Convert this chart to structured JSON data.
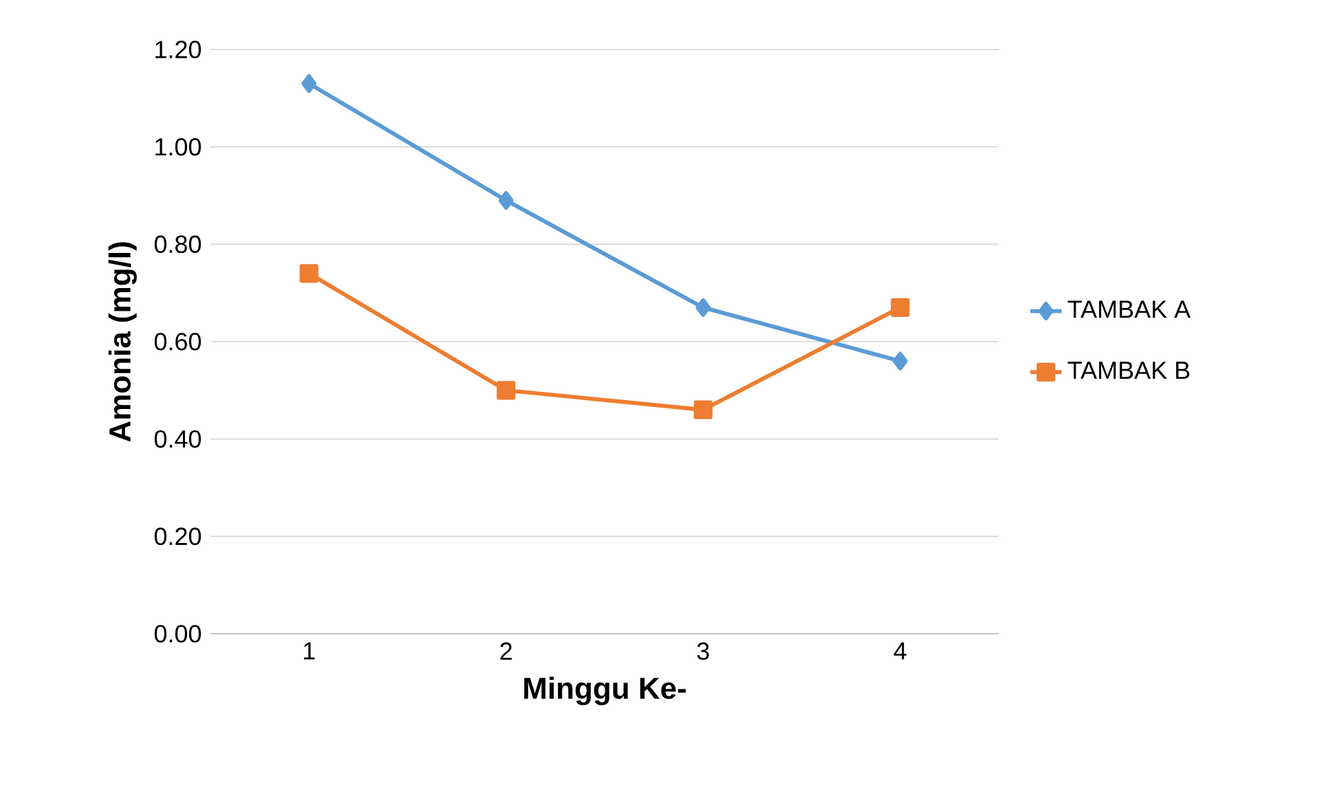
{
  "chart_data": {
    "type": "line",
    "xlabel": "Minggu Ke-",
    "ylabel": "Amonia (mg/l)",
    "categories": [
      "1",
      "2",
      "3",
      "4"
    ],
    "series": [
      {
        "name": "TAMBAK A",
        "color": "#5b9bd5",
        "marker": "diamond",
        "values": [
          1.13,
          0.89,
          0.67,
          0.56
        ]
      },
      {
        "name": "TAMBAK B",
        "color": "#ed7d31",
        "marker": "square",
        "values": [
          0.74,
          0.5,
          0.46,
          0.67
        ]
      }
    ],
    "ylim": [
      0,
      1.2
    ],
    "yticks": [
      {
        "value": 0,
        "label": "0.00"
      },
      {
        "value": 0.2,
        "label": "0.20"
      },
      {
        "value": 0.4,
        "label": "0.40"
      },
      {
        "value": 0.6,
        "label": "0.60"
      },
      {
        "value": 0.8,
        "label": "0.80"
      },
      {
        "value": 1.0,
        "label": "1.00"
      },
      {
        "value": 1.2,
        "label": "1.20"
      }
    ],
    "grid": "y",
    "legend": "right"
  }
}
